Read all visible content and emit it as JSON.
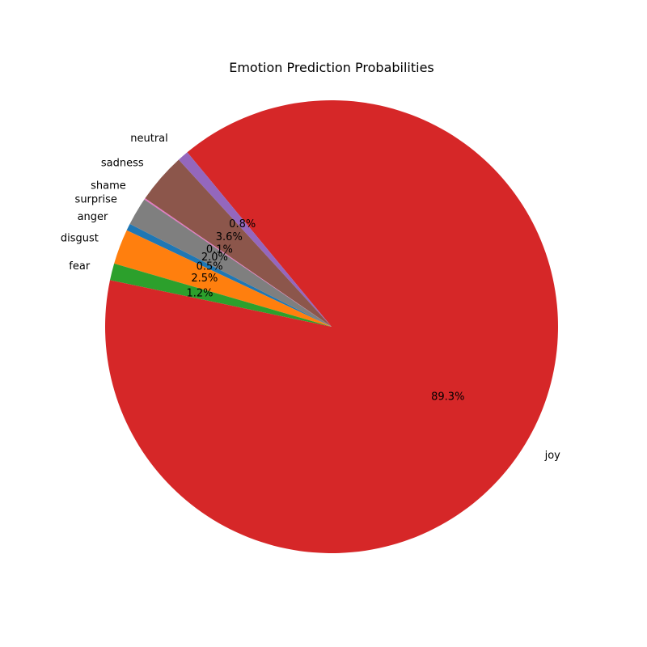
{
  "chart_data": {
    "type": "pie",
    "title": "Emotion Prediction Probabilities",
    "slices": [
      {
        "label": "anger",
        "value": 0.5,
        "pct_label": "0.5%",
        "color": "#1f77b4"
      },
      {
        "label": "disgust",
        "value": 2.5,
        "pct_label": "2.5%",
        "color": "#ff7f0e"
      },
      {
        "label": "fear",
        "value": 1.2,
        "pct_label": "1.2%",
        "color": "#2ca02c"
      },
      {
        "label": "joy",
        "value": 89.3,
        "pct_label": "89.3%",
        "color": "#d62728"
      },
      {
        "label": "neutral",
        "value": 0.8,
        "pct_label": "0.8%",
        "color": "#9467bd"
      },
      {
        "label": "sadness",
        "value": 3.6,
        "pct_label": "3.6%",
        "color": "#8c564b"
      },
      {
        "label": "shame",
        "value": 0.1,
        "pct_label": "0.1%",
        "color": "#e377c2"
      },
      {
        "label": "surprise",
        "value": 2.0,
        "pct_label": "2.0%",
        "color": "#7f7f7f"
      }
    ],
    "legend": "none"
  }
}
